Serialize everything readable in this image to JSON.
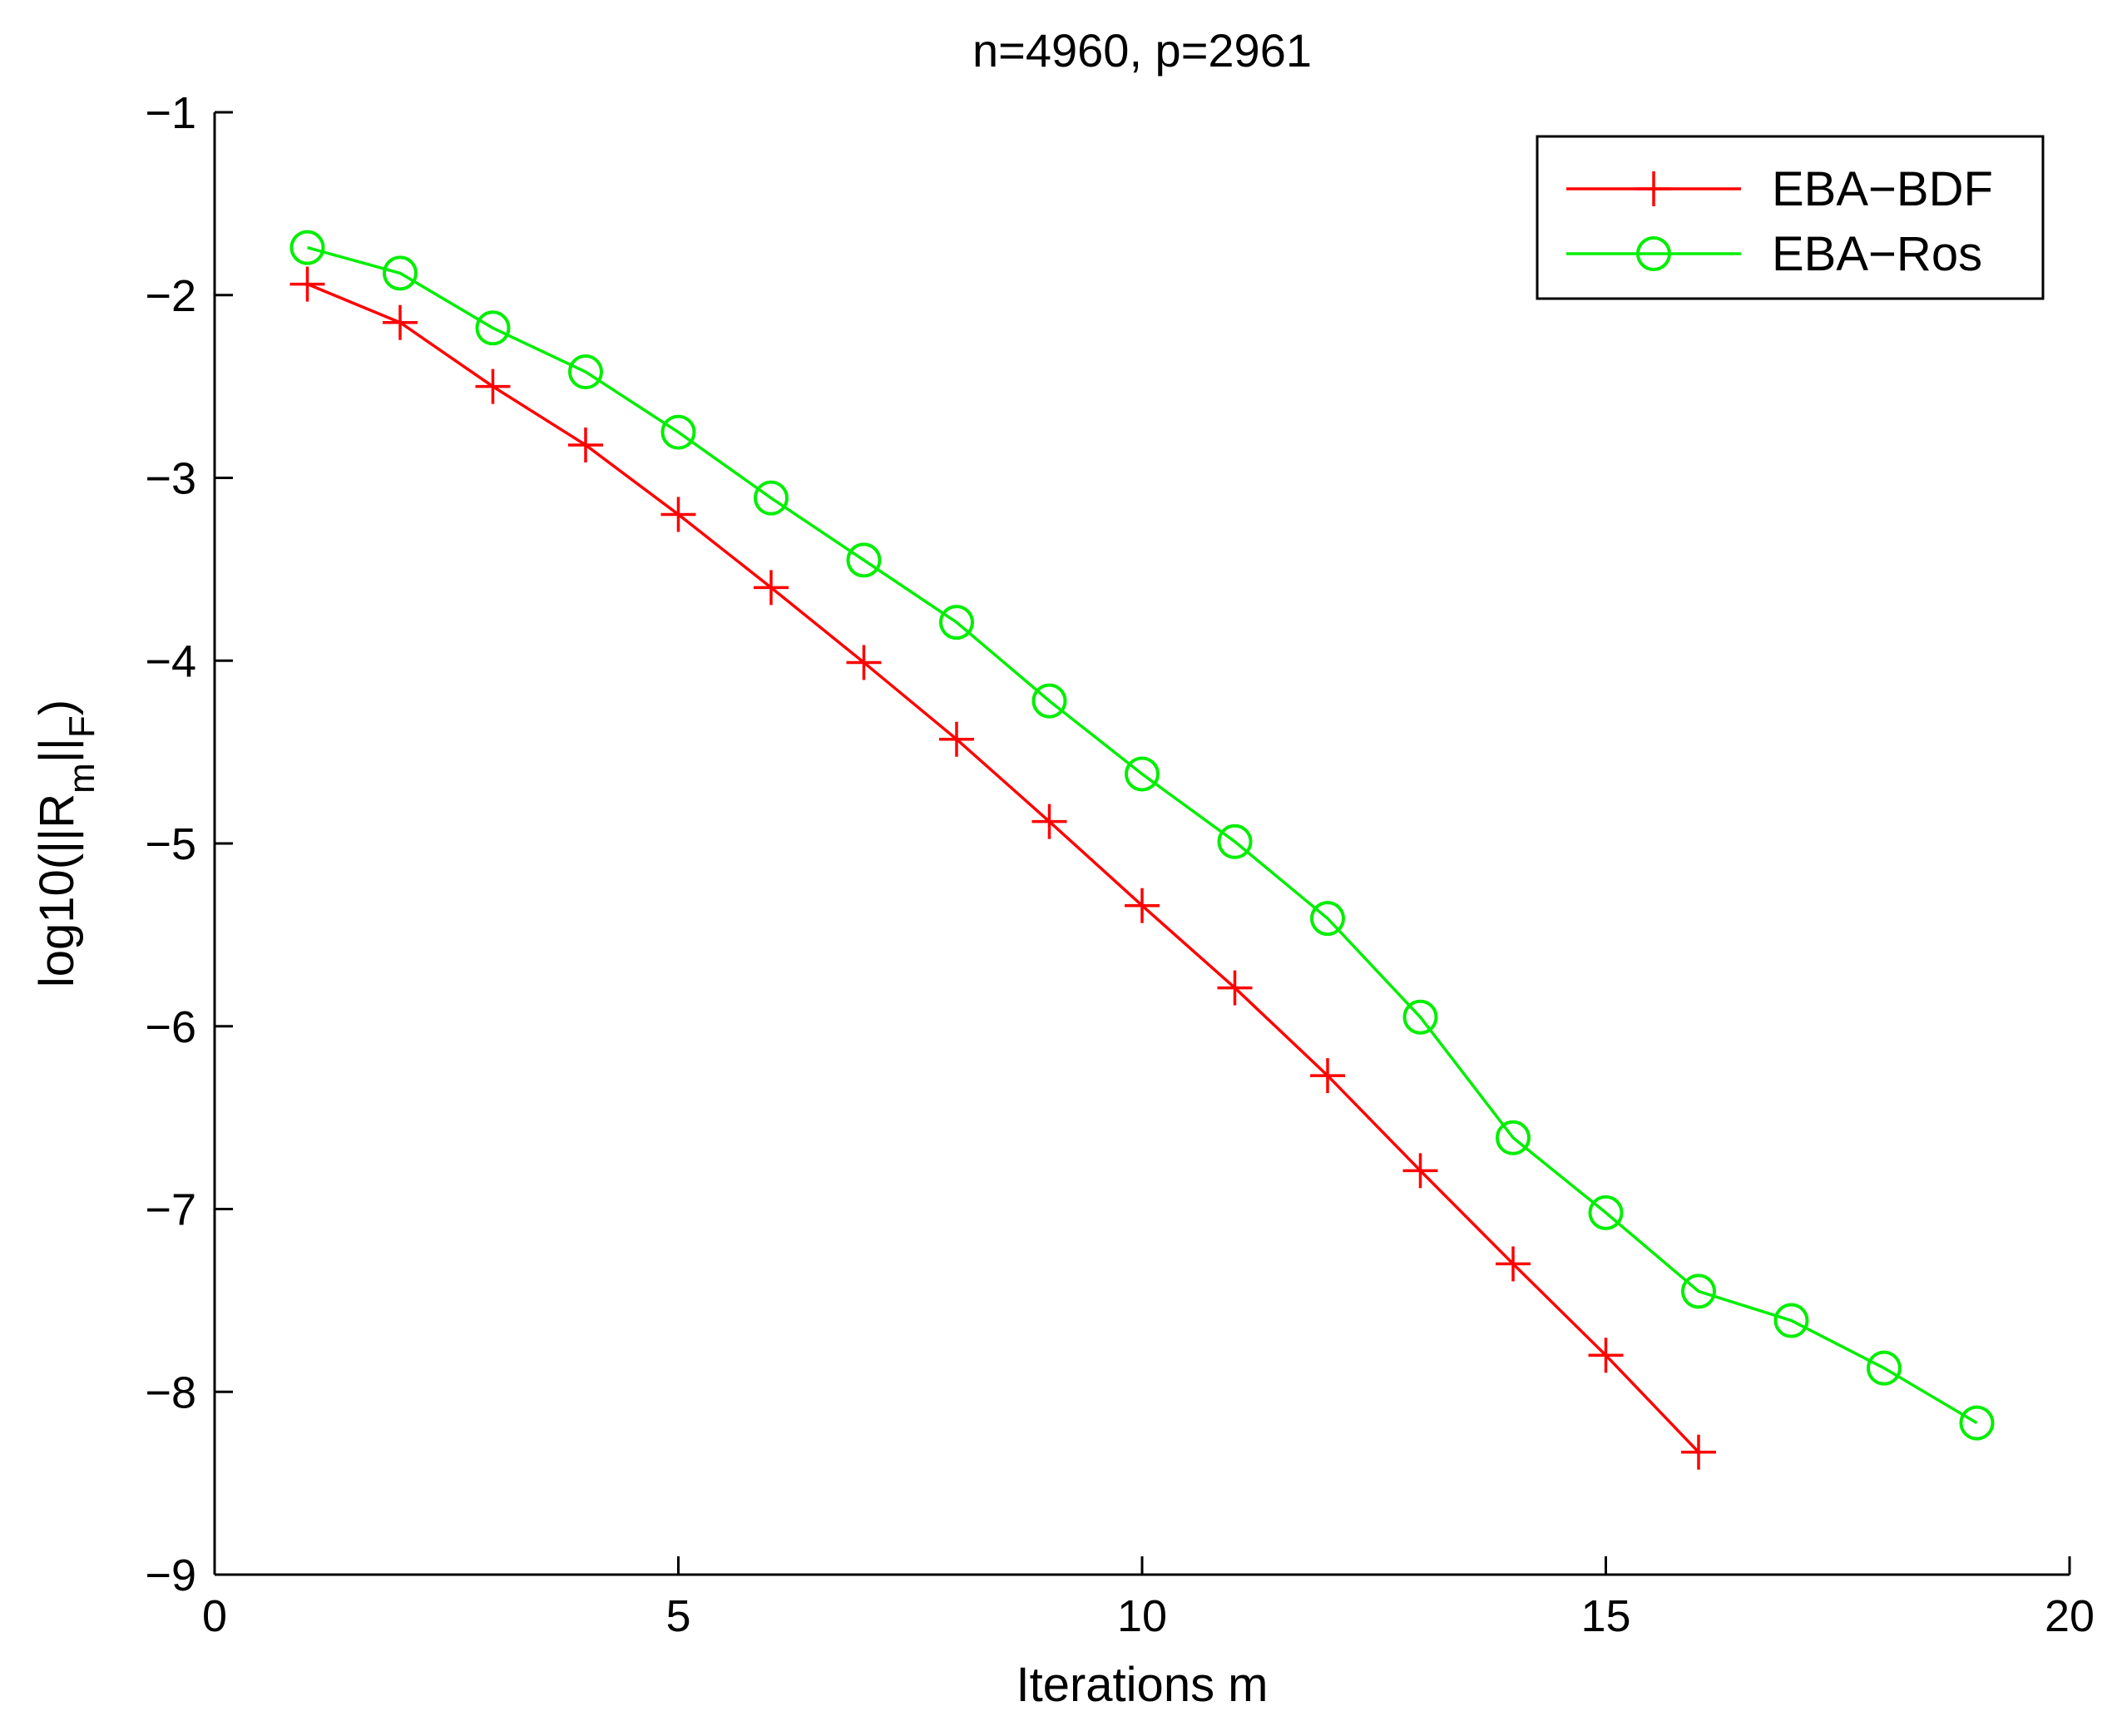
{
  "chart_data": {
    "type": "line",
    "title": "n=4960, p=2961",
    "xlabel": "Iterations m",
    "ylabel_parts": {
      "prefix": "log10(||R",
      "sub1": "m",
      "mid": "||",
      "sub2": "F",
      "suffix": ")"
    },
    "xlim": [
      0,
      20
    ],
    "ylim": [
      -9,
      -1
    ],
    "xticks": [
      0,
      5,
      10,
      15,
      20
    ],
    "yticks": [
      -1,
      -2,
      -3,
      -4,
      -5,
      -6,
      -7,
      -8,
      -9
    ],
    "xtick_labels": [
      "0",
      "5",
      "10",
      "15",
      "20"
    ],
    "ytick_labels": [
      "−1",
      "−2",
      "−3",
      "−4",
      "−5",
      "−6",
      "−7",
      "−8",
      "−9"
    ],
    "grid": false,
    "legend_position": "top-right",
    "series": [
      {
        "name": "EBA−BDF",
        "color": "#ff0000",
        "marker": "plus",
        "x": [
          1,
          2,
          3,
          4,
          5,
          6,
          7,
          8,
          9,
          10,
          11,
          12,
          13,
          14,
          15,
          16
        ],
        "y": [
          -1.94,
          -2.15,
          -2.5,
          -2.82,
          -3.2,
          -3.6,
          -4.01,
          -4.43,
          -4.88,
          -5.34,
          -5.79,
          -6.27,
          -6.79,
          -7.3,
          -7.8,
          -8.33
        ]
      },
      {
        "name": "EBA−Ros",
        "color": "#00ee00",
        "marker": "circle",
        "x": [
          1,
          2,
          3,
          4,
          5,
          6,
          7,
          8,
          9,
          10,
          11,
          12,
          13,
          14,
          15,
          16,
          17,
          18,
          19
        ],
        "y": [
          -1.74,
          -1.88,
          -2.18,
          -2.42,
          -2.75,
          -3.11,
          -3.45,
          -3.79,
          -4.22,
          -4.62,
          -4.99,
          -5.41,
          -5.95,
          -6.61,
          -7.02,
          -7.45,
          -7.61,
          -7.87,
          -8.17
        ]
      }
    ]
  }
}
